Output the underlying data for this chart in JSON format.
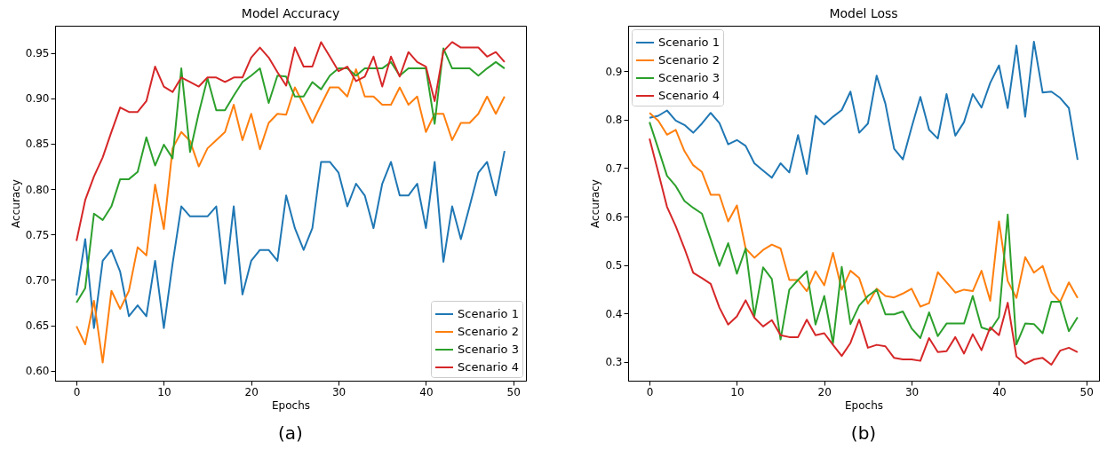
{
  "chart_data": [
    {
      "type": "line",
      "title": "Model Accuracy",
      "xlabel": "Epochs",
      "ylabel": "Accuracy",
      "annotations": [
        "(a)"
      ],
      "legend": "bottom right",
      "grid": false,
      "x": [
        0,
        1,
        2,
        3,
        4,
        5,
        6,
        7,
        8,
        9,
        10,
        11,
        12,
        13,
        14,
        15,
        16,
        17,
        18,
        19,
        20,
        21,
        22,
        23,
        24,
        25,
        26,
        27,
        28,
        29,
        30,
        31,
        32,
        33,
        34,
        35,
        36,
        37,
        38,
        39,
        40,
        41,
        42,
        43,
        44,
        45,
        46,
        47,
        48,
        49
      ],
      "xlim": [
        -2.45,
        51.45
      ],
      "xticks": [
        0,
        10,
        20,
        30,
        40,
        50
      ],
      "ylim": [
        0.589,
        0.98
      ],
      "yticks": [
        {
          "value": 0.6,
          "label": "0.60"
        },
        {
          "value": 0.65,
          "label": "0.65"
        },
        {
          "value": 0.7,
          "label": "0.70"
        },
        {
          "value": 0.75,
          "label": "0.75"
        },
        {
          "value": 0.8,
          "label": "0.80"
        },
        {
          "value": 0.85,
          "label": "0.85"
        },
        {
          "value": 0.9,
          "label": "0.90"
        },
        {
          "value": 0.95,
          "label": "0.95"
        }
      ],
      "series": [
        {
          "name": "Scenario 1",
          "color": "#1f77b4",
          "values": [
            0.683,
            0.745,
            0.647,
            0.721,
            0.733,
            0.709,
            0.66,
            0.672,
            0.66,
            0.721,
            0.647,
            0.718,
            0.781,
            0.77,
            0.77,
            0.77,
            0.781,
            0.696,
            0.781,
            0.684,
            0.721,
            0.733,
            0.733,
            0.721,
            0.793,
            0.757,
            0.733,
            0.757,
            0.83,
            0.83,
            0.818,
            0.781,
            0.806,
            0.793,
            0.757,
            0.806,
            0.83,
            0.793,
            0.793,
            0.806,
            0.757,
            0.83,
            0.72,
            0.781,
            0.745,
            0.781,
            0.818,
            0.83,
            0.793,
            0.842
          ]
        },
        {
          "name": "Scenario 2",
          "color": "#ff7f0e",
          "values": [
            0.649,
            0.629,
            0.677,
            0.609,
            0.688,
            0.668,
            0.688,
            0.736,
            0.727,
            0.805,
            0.756,
            0.845,
            0.863,
            0.853,
            0.825,
            0.845,
            0.854,
            0.863,
            0.893,
            0.854,
            0.883,
            0.844,
            0.873,
            0.883,
            0.882,
            0.912,
            0.893,
            0.873,
            0.893,
            0.912,
            0.912,
            0.902,
            0.932,
            0.902,
            0.902,
            0.893,
            0.893,
            0.912,
            0.893,
            0.902,
            0.863,
            0.883,
            0.883,
            0.854,
            0.873,
            0.873,
            0.883,
            0.902,
            0.883,
            0.902
          ]
        },
        {
          "name": "Scenario 3",
          "color": "#2ca02c",
          "values": [
            0.675,
            0.691,
            0.773,
            0.766,
            0.781,
            0.811,
            0.811,
            0.819,
            0.857,
            0.826,
            0.849,
            0.834,
            0.933,
            0.841,
            0.884,
            0.922,
            0.887,
            0.887,
            0.903,
            0.918,
            0.925,
            0.933,
            0.895,
            0.925,
            0.924,
            0.902,
            0.902,
            0.918,
            0.91,
            0.925,
            0.933,
            0.933,
            0.925,
            0.933,
            0.933,
            0.933,
            0.94,
            0.925,
            0.933,
            0.933,
            0.933,
            0.872,
            0.955,
            0.933,
            0.933,
            0.933,
            0.925,
            0.933,
            0.94,
            0.933
          ]
        },
        {
          "name": "Scenario 4",
          "color": "#d62728",
          "values": [
            0.743,
            0.788,
            0.814,
            0.835,
            0.863,
            0.89,
            0.885,
            0.885,
            0.897,
            0.935,
            0.913,
            0.907,
            0.923,
            0.918,
            0.913,
            0.923,
            0.923,
            0.918,
            0.923,
            0.923,
            0.945,
            0.956,
            0.945,
            0.929,
            0.914,
            0.956,
            0.935,
            0.935,
            0.962,
            0.946,
            0.93,
            0.935,
            0.919,
            0.924,
            0.946,
            0.913,
            0.946,
            0.924,
            0.951,
            0.94,
            0.935,
            0.897,
            0.952,
            0.962,
            0.956,
            0.956,
            0.956,
            0.946,
            0.951,
            0.94
          ]
        }
      ]
    },
    {
      "type": "line",
      "title": "Model Loss",
      "xlabel": "Epochs",
      "ylabel": "Accuracy",
      "annotations": [
        "(b)"
      ],
      "legend": "top left",
      "grid": false,
      "x": [
        0,
        1,
        2,
        3,
        4,
        5,
        6,
        7,
        8,
        9,
        10,
        11,
        12,
        13,
        14,
        15,
        16,
        17,
        18,
        19,
        20,
        21,
        22,
        23,
        24,
        25,
        26,
        27,
        28,
        29,
        30,
        31,
        32,
        33,
        34,
        35,
        36,
        37,
        38,
        39,
        40,
        41,
        42,
        43,
        44,
        45,
        46,
        47,
        48,
        49
      ],
      "xlim": [
        -2.45,
        51.45
      ],
      "xticks": [
        0,
        10,
        20,
        30,
        40,
        50
      ],
      "ylim": [
        0.261,
        0.994
      ],
      "yticks": [
        0.3,
        0.4,
        0.5,
        0.6,
        0.7,
        0.8,
        0.9
      ],
      "series": [
        {
          "name": "Scenario 1",
          "color": "#1f77b4",
          "values": [
            0.804,
            0.808,
            0.819,
            0.798,
            0.789,
            0.773,
            0.792,
            0.814,
            0.793,
            0.749,
            0.758,
            0.746,
            0.71,
            0.695,
            0.68,
            0.71,
            0.691,
            0.768,
            0.688,
            0.808,
            0.79,
            0.806,
            0.82,
            0.858,
            0.773,
            0.792,
            0.891,
            0.833,
            0.74,
            0.718,
            0.784,
            0.847,
            0.779,
            0.761,
            0.853,
            0.767,
            0.795,
            0.853,
            0.825,
            0.876,
            0.912,
            0.824,
            0.953,
            0.806,
            0.961,
            0.856,
            0.858,
            0.845,
            0.824,
            0.717
          ]
        },
        {
          "name": "Scenario 2",
          "color": "#ff7f0e",
          "values": [
            0.814,
            0.798,
            0.769,
            0.779,
            0.735,
            0.706,
            0.692,
            0.645,
            0.645,
            0.59,
            0.623,
            0.534,
            0.515,
            0.531,
            0.542,
            0.534,
            0.469,
            0.469,
            0.446,
            0.487,
            0.458,
            0.525,
            0.449,
            0.488,
            0.473,
            0.42,
            0.451,
            0.436,
            0.433,
            0.441,
            0.451,
            0.414,
            0.421,
            0.485,
            0.464,
            0.443,
            0.449,
            0.446,
            0.488,
            0.426,
            0.59,
            0.467,
            0.432,
            0.516,
            0.484,
            0.498,
            0.444,
            0.424,
            0.464,
            0.432
          ]
        },
        {
          "name": "Scenario 3",
          "color": "#2ca02c",
          "values": [
            0.795,
            0.74,
            0.684,
            0.663,
            0.632,
            0.618,
            0.606,
            0.553,
            0.498,
            0.545,
            0.482,
            0.534,
            0.394,
            0.495,
            0.471,
            0.346,
            0.449,
            0.469,
            0.487,
            0.377,
            0.436,
            0.338,
            0.496,
            0.378,
            0.416,
            0.436,
            0.449,
            0.398,
            0.398,
            0.404,
            0.369,
            0.349,
            0.402,
            0.353,
            0.379,
            0.379,
            0.379,
            0.436,
            0.371,
            0.365,
            0.392,
            0.604,
            0.336,
            0.379,
            0.378,
            0.359,
            0.424,
            0.424,
            0.363,
            0.392
          ]
        },
        {
          "name": "Scenario 4",
          "color": "#d62728",
          "values": [
            0.761,
            0.691,
            0.62,
            0.58,
            0.534,
            0.484,
            0.473,
            0.461,
            0.412,
            0.377,
            0.394,
            0.427,
            0.391,
            0.373,
            0.386,
            0.355,
            0.351,
            0.351,
            0.387,
            0.355,
            0.359,
            0.335,
            0.312,
            0.339,
            0.387,
            0.329,
            0.335,
            0.332,
            0.308,
            0.305,
            0.305,
            0.302,
            0.349,
            0.32,
            0.322,
            0.351,
            0.317,
            0.357,
            0.324,
            0.371,
            0.355,
            0.422,
            0.311,
            0.296,
            0.305,
            0.308,
            0.294,
            0.323,
            0.329,
            0.32
          ]
        }
      ]
    }
  ]
}
